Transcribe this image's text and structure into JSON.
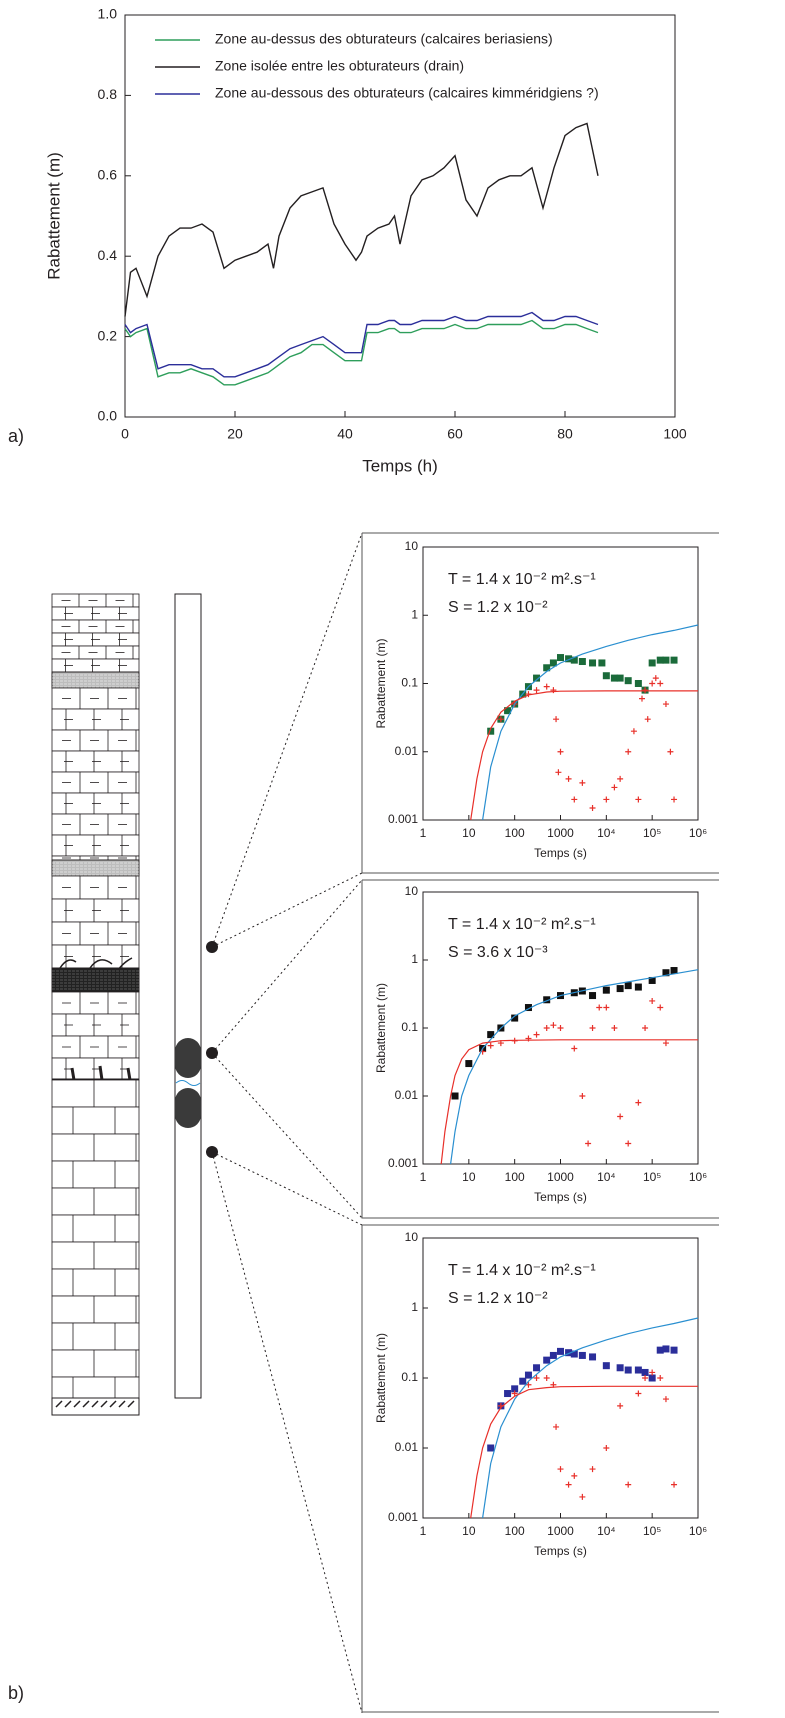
{
  "chart_data": [
    {
      "type": "line",
      "panel_label": "a)",
      "x_label": "Temps (h)",
      "y_label": "Rabattement (m)",
      "legend": "upper left",
      "xlim": [
        0,
        100
      ],
      "ylim": [
        0,
        1
      ],
      "xticks": [
        0,
        20,
        40,
        60,
        80,
        100
      ],
      "yticks": [
        {
          "value": 0,
          "label": "0.0"
        },
        0.2,
        0.4,
        0.6,
        0.8,
        {
          "value": 1,
          "label": "1.0"
        }
      ],
      "x": [
        0,
        1,
        2,
        4,
        6,
        8,
        10,
        12,
        14,
        16,
        18,
        20,
        22,
        24,
        26,
        27,
        28,
        30,
        32,
        34,
        36,
        38,
        40,
        42,
        43,
        44,
        46,
        48,
        49,
        50,
        52,
        54,
        56,
        58,
        60,
        62,
        64,
        66,
        68,
        70,
        72,
        74,
        76,
        78,
        80,
        82,
        84,
        86
      ],
      "series": [
        {
          "name": "Zone au-dessus des obturateurs (calcaires beriasiens)",
          "color": "#2e9e5b",
          "values": [
            0.22,
            0.2,
            0.21,
            0.22,
            0.1,
            0.11,
            0.11,
            0.12,
            0.11,
            0.1,
            0.08,
            0.08,
            0.09,
            0.1,
            0.11,
            0.12,
            0.13,
            0.15,
            0.16,
            0.18,
            0.18,
            0.16,
            0.14,
            0.14,
            0.14,
            0.21,
            0.21,
            0.22,
            0.22,
            0.21,
            0.21,
            0.22,
            0.22,
            0.22,
            0.23,
            0.22,
            0.22,
            0.23,
            0.23,
            0.23,
            0.23,
            0.24,
            0.22,
            0.22,
            0.23,
            0.23,
            0.22,
            0.21
          ]
        },
        {
          "name": "Zone isolée entre les obturateurs (drain)",
          "color": "#231f20",
          "values": [
            0.25,
            0.36,
            0.37,
            0.3,
            0.4,
            0.45,
            0.47,
            0.47,
            0.48,
            0.46,
            0.37,
            0.39,
            0.4,
            0.41,
            0.43,
            0.37,
            0.45,
            0.52,
            0.55,
            0.56,
            0.57,
            0.48,
            0.43,
            0.39,
            0.41,
            0.45,
            0.47,
            0.48,
            0.5,
            0.43,
            0.55,
            0.59,
            0.6,
            0.62,
            0.65,
            0.54,
            0.5,
            0.57,
            0.59,
            0.6,
            0.6,
            0.62,
            0.52,
            0.62,
            0.7,
            0.72,
            0.73,
            0.6
          ]
        },
        {
          "name": "Zone au-dessous des obturateurs (calcaires kimméridgiens ?)",
          "color": "#2b2e9a",
          "values": [
            0.23,
            0.21,
            0.22,
            0.23,
            0.12,
            0.13,
            0.13,
            0.13,
            0.12,
            0.12,
            0.1,
            0.1,
            0.11,
            0.12,
            0.13,
            0.14,
            0.15,
            0.17,
            0.18,
            0.19,
            0.2,
            0.18,
            0.16,
            0.16,
            0.16,
            0.23,
            0.23,
            0.24,
            0.24,
            0.23,
            0.23,
            0.24,
            0.24,
            0.24,
            0.25,
            0.24,
            0.24,
            0.25,
            0.25,
            0.25,
            0.25,
            0.26,
            0.24,
            0.24,
            0.25,
            0.25,
            0.24,
            0.23
          ]
        }
      ]
    },
    {
      "type": "loglog",
      "x_label": "Temps (s)",
      "y_label": "Rabattement (m)",
      "annotations": [
        "T = 1.4 x 10⁻² m².s⁻¹",
        "S = 1.2 x 10⁻²"
      ],
      "xlim": [
        1,
        1000000
      ],
      "ylim": [
        0.001,
        10
      ],
      "xticks": [
        1,
        10,
        100,
        1000,
        {
          "value": 10000,
          "label": "10⁴"
        },
        {
          "value": 100000,
          "label": "10⁵"
        },
        {
          "value": 1000000,
          "label": "10⁶"
        }
      ],
      "yticks": [
        0.001,
        0.01,
        0.1,
        1,
        10
      ],
      "series": [
        {
          "marker": "square",
          "color": "#1b6b3a",
          "x": [
            30,
            50,
            70,
            100,
            150,
            200,
            300,
            500,
            700,
            1000,
            1500,
            2000,
            3000,
            5000,
            8000,
            10000,
            15000,
            20000,
            30000,
            50000,
            70000,
            100000,
            150000,
            200000,
            300000
          ],
          "values": [
            0.02,
            0.03,
            0.04,
            0.05,
            0.07,
            0.09,
            0.12,
            0.17,
            0.2,
            0.24,
            0.23,
            0.22,
            0.21,
            0.2,
            0.2,
            0.13,
            0.12,
            0.12,
            0.11,
            0.1,
            0.08,
            0.2,
            0.22,
            0.22,
            0.22
          ]
        },
        {
          "marker": "plus",
          "color": "#e8302a",
          "x": [
            50,
            100,
            200,
            300,
            500,
            700,
            800,
            900,
            1000,
            1500,
            2000,
            3000,
            5000,
            10000,
            15000,
            20000,
            30000,
            40000,
            50000,
            60000,
            70000,
            80000,
            100000,
            120000,
            150000,
            200000,
            250000,
            300000
          ],
          "values": [
            0.03,
            0.05,
            0.07,
            0.08,
            0.09,
            0.08,
            0.03,
            0.005,
            0.01,
            0.004,
            0.002,
            0.0035,
            0.0015,
            0.002,
            0.003,
            0.004,
            0.01,
            0.02,
            0.002,
            0.06,
            0.08,
            0.03,
            0.1,
            0.12,
            0.1,
            0.05,
            0.01,
            0.002
          ]
        },
        {
          "marker": "line",
          "color": "#2a8fd0",
          "x": [
            20,
            30,
            50,
            100,
            200,
            500,
            1000,
            3000,
            10000,
            30000,
            100000,
            300000,
            1000000
          ],
          "values": [
            0.001,
            0.006,
            0.02,
            0.05,
            0.09,
            0.15,
            0.2,
            0.27,
            0.35,
            0.43,
            0.52,
            0.6,
            0.72
          ]
        },
        {
          "marker": "line",
          "color": "#e8302a",
          "x": [
            11,
            15,
            20,
            30,
            50,
            100,
            200,
            500,
            1000,
            10000,
            1000000
          ],
          "values": [
            0.001,
            0.004,
            0.01,
            0.022,
            0.038,
            0.055,
            0.068,
            0.075,
            0.077,
            0.078,
            0.078
          ]
        }
      ]
    },
    {
      "type": "loglog",
      "x_label": "Temps (s)",
      "y_label": "Rabattement (m)",
      "annotations": [
        "T = 1.4 x 10⁻² m².s⁻¹",
        "S = 3.6 x 10⁻³"
      ],
      "xlim": [
        1,
        1000000
      ],
      "ylim": [
        0.001,
        10
      ],
      "xticks": [
        1,
        10,
        100,
        1000,
        {
          "value": 10000,
          "label": "10⁴"
        },
        {
          "value": 100000,
          "label": "10⁵"
        },
        {
          "value": 1000000,
          "label": "10⁶"
        }
      ],
      "yticks": [
        0.001,
        0.01,
        0.1,
        1,
        10
      ],
      "series": [
        {
          "marker": "square",
          "color": "#111111",
          "x": [
            5,
            10,
            20,
            30,
            50,
            100,
            200,
            500,
            1000,
            2000,
            3000,
            5000,
            10000,
            20000,
            30000,
            50000,
            100000,
            200000,
            300000
          ],
          "values": [
            0.01,
            0.03,
            0.05,
            0.08,
            0.1,
            0.14,
            0.2,
            0.26,
            0.3,
            0.33,
            0.35,
            0.3,
            0.36,
            0.38,
            0.42,
            0.4,
            0.5,
            0.65,
            0.7
          ]
        },
        {
          "marker": "plus",
          "color": "#e8302a",
          "x": [
            20,
            30,
            50,
            100,
            200,
            300,
            500,
            700,
            1000,
            2000,
            3000,
            4000,
            5000,
            7000,
            10000,
            15000,
            20000,
            30000,
            50000,
            70000,
            100000,
            150000,
            200000
          ],
          "values": [
            0.045,
            0.055,
            0.06,
            0.065,
            0.07,
            0.08,
            0.1,
            0.11,
            0.1,
            0.05,
            0.01,
            0.002,
            0.1,
            0.2,
            0.2,
            0.1,
            0.005,
            0.002,
            0.008,
            0.1,
            0.25,
            0.2,
            0.06
          ]
        },
        {
          "marker": "line",
          "color": "#2a8fd0",
          "x": [
            4,
            5,
            7,
            10,
            20,
            50,
            100,
            300,
            1000,
            10000,
            100000,
            1000000
          ],
          "values": [
            0.001,
            0.003,
            0.01,
            0.02,
            0.05,
            0.1,
            0.15,
            0.22,
            0.3,
            0.42,
            0.55,
            0.72
          ]
        },
        {
          "marker": "line",
          "color": "#e8302a",
          "x": [
            2.5,
            3,
            4,
            5,
            7,
            10,
            20,
            50,
            100,
            1000,
            1000000
          ],
          "values": [
            0.001,
            0.003,
            0.01,
            0.02,
            0.035,
            0.048,
            0.06,
            0.065,
            0.066,
            0.067,
            0.067
          ]
        }
      ]
    },
    {
      "type": "loglog",
      "panel_label": "b)",
      "x_label": "Temps (s)",
      "y_label": "Rabattement (m)",
      "annotations": [
        "T = 1.4 x 10⁻² m².s⁻¹",
        "S = 1.2 x 10⁻²"
      ],
      "xlim": [
        1,
        1000000
      ],
      "ylim": [
        0.001,
        10
      ],
      "xticks": [
        1,
        10,
        100,
        1000,
        {
          "value": 10000,
          "label": "10⁴"
        },
        {
          "value": 100000,
          "label": "10⁵"
        },
        {
          "value": 1000000,
          "label": "10⁶"
        }
      ],
      "yticks": [
        0.001,
        0.01,
        0.1,
        1,
        10
      ],
      "series": [
        {
          "marker": "square",
          "color": "#2b2e9a",
          "x": [
            30,
            50,
            70,
            100,
            150,
            200,
            300,
            500,
            700,
            1000,
            1500,
            2000,
            3000,
            5000,
            10000,
            20000,
            30000,
            50000,
            70000,
            100000,
            150000,
            200000,
            300000
          ],
          "values": [
            0.01,
            0.04,
            0.06,
            0.07,
            0.09,
            0.11,
            0.14,
            0.18,
            0.21,
            0.24,
            0.23,
            0.22,
            0.21,
            0.2,
            0.15,
            0.14,
            0.13,
            0.13,
            0.12,
            0.1,
            0.25,
            0.26,
            0.25
          ]
        },
        {
          "marker": "plus",
          "color": "#e8302a",
          "x": [
            50,
            100,
            200,
            300,
            500,
            700,
            800,
            1000,
            1500,
            2000,
            3000,
            5000,
            10000,
            20000,
            30000,
            50000,
            70000,
            100000,
            150000,
            200000,
            300000
          ],
          "values": [
            0.04,
            0.06,
            0.08,
            0.1,
            0.1,
            0.08,
            0.02,
            0.005,
            0.003,
            0.004,
            0.002,
            0.005,
            0.01,
            0.04,
            0.003,
            0.06,
            0.1,
            0.12,
            0.1,
            0.05,
            0.003
          ]
        },
        {
          "marker": "line",
          "color": "#2a8fd0",
          "x": [
            20,
            30,
            50,
            100,
            200,
            500,
            1000,
            3000,
            10000,
            30000,
            100000,
            300000,
            1000000
          ],
          "values": [
            0.001,
            0.006,
            0.02,
            0.05,
            0.09,
            0.15,
            0.2,
            0.27,
            0.35,
            0.43,
            0.52,
            0.6,
            0.72
          ]
        },
        {
          "marker": "line",
          "color": "#e8302a",
          "x": [
            11,
            15,
            20,
            30,
            50,
            100,
            200,
            500,
            1000,
            10000,
            1000000
          ],
          "values": [
            0.001,
            0.004,
            0.01,
            0.022,
            0.038,
            0.055,
            0.068,
            0.073,
            0.075,
            0.076,
            0.076
          ]
        }
      ]
    }
  ]
}
